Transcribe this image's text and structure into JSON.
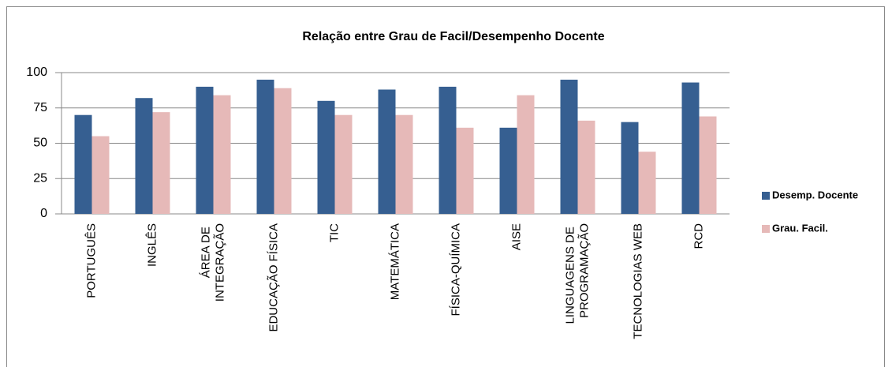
{
  "chart_data": {
    "type": "bar",
    "title": "Relação entre Grau de Facil/Desempenho Docente",
    "categories": [
      "PORTUGUÊS",
      "INGLÊS",
      "ÁREA DE INTEGRAÇÃO",
      "EDUCAÇÃO FÍSICA",
      "TIC",
      "MATEMÁTICA",
      "FÍSICA-QUÍMICA",
      "AISE",
      "LINGUAGENS DE PROGRAMAÇÃO",
      "TECNOLOGIAS WEB",
      "RCD"
    ],
    "series": [
      {
        "name": "Desemp. Docente",
        "color": "#365f91",
        "values": [
          70,
          82,
          90,
          95,
          80,
          88,
          90,
          61,
          95,
          65,
          93
        ]
      },
      {
        "name": "Grau. Facil.",
        "color": "#e6b9b8",
        "values": [
          55,
          72,
          84,
          89,
          70,
          70,
          61,
          84,
          66,
          44,
          69
        ]
      }
    ],
    "ylim": [
      0,
      100
    ],
    "yticks": [
      0,
      25,
      50,
      75,
      100
    ],
    "grid": true,
    "legend": "right"
  }
}
